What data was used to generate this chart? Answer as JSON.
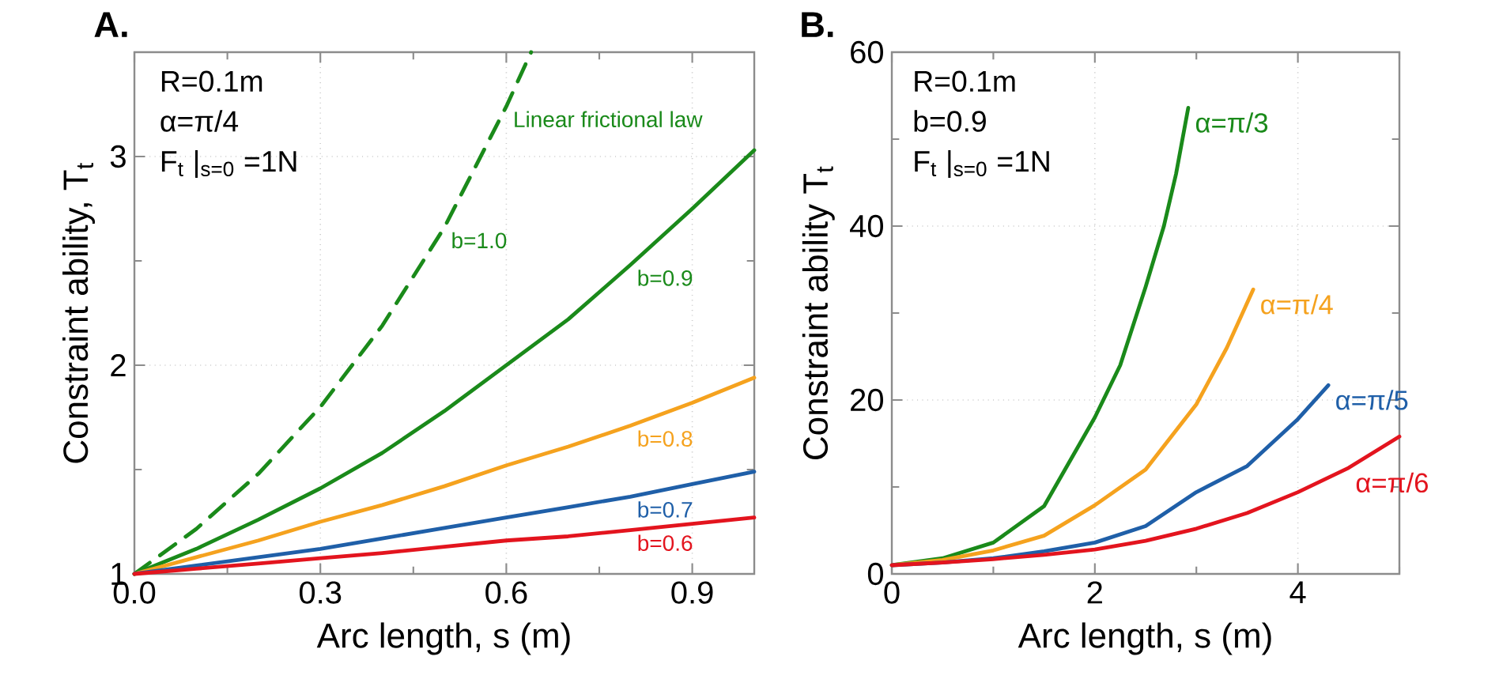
{
  "chart_data": [
    {
      "type": "line",
      "title": "A.",
      "xlabel": "Arc length, s (m)",
      "ylabel": "Constraint ability, T$_{t}$",
      "xlim": [
        0,
        1.0
      ],
      "ylim": [
        1,
        3.5
      ],
      "xticks": [
        {
          "value": 0,
          "label": "0.0"
        },
        {
          "value": 0.15,
          "label": null
        },
        0.3,
        {
          "value": 0.45,
          "label": null
        },
        0.6,
        {
          "value": 0.75,
          "label": null
        },
        0.9
      ],
      "yticks": [
        1,
        {
          "value": 1.5,
          "label": null
        },
        2,
        {
          "value": 2.5,
          "label": null
        },
        3
      ],
      "grid": true,
      "marker": "none",
      "series": [
        {
          "color": "#1a8a1a",
          "line_style": "dashed",
          "x": [
            0,
            0.1,
            0.2,
            0.3,
            0.4,
            0.5,
            0.6,
            0.64
          ],
          "values": [
            1,
            1.216,
            1.48,
            1.8,
            2.19,
            2.66,
            3.24,
            3.5
          ]
        },
        {
          "color": "#1a8a1a",
          "line_style": "solid",
          "x": [
            0,
            0.1,
            0.2,
            0.3,
            0.4,
            0.5,
            0.6,
            0.7,
            0.8,
            0.9,
            1.0
          ],
          "values": [
            1,
            1.12,
            1.26,
            1.41,
            1.58,
            1.78,
            2.0,
            2.22,
            2.48,
            2.75,
            3.03
          ]
        },
        {
          "color": "#f5a21e",
          "line_style": "solid",
          "x": [
            0,
            0.1,
            0.2,
            0.3,
            0.4,
            0.5,
            0.6,
            0.7,
            0.8,
            0.9,
            1.0
          ],
          "values": [
            1,
            1.08,
            1.16,
            1.25,
            1.33,
            1.42,
            1.52,
            1.61,
            1.71,
            1.82,
            1.94
          ]
        },
        {
          "color": "#1f5fa8",
          "line_style": "solid",
          "x": [
            0,
            0.1,
            0.2,
            0.3,
            0.4,
            0.5,
            0.6,
            0.7,
            0.8,
            0.9,
            1.0
          ],
          "values": [
            1,
            1.04,
            1.08,
            1.12,
            1.17,
            1.22,
            1.27,
            1.32,
            1.37,
            1.43,
            1.49
          ]
        },
        {
          "color": "#e3141e",
          "line_style": "solid",
          "x": [
            0,
            0.1,
            0.2,
            0.3,
            0.4,
            0.5,
            0.6,
            0.7,
            0.8,
            0.9,
            1.0
          ],
          "values": [
            1,
            1.025,
            1.05,
            1.075,
            1.1,
            1.13,
            1.16,
            1.18,
            1.21,
            1.24,
            1.27
          ]
        }
      ],
      "annotations": [
        "R=0.1m",
        "α=π/4",
        "F$_{t}$ |$_{s=0}$ =1N",
        {
          "text": "Linear frictional law",
          "x": 0.6,
          "y": 3.24
        },
        {
          "text": "b=1.0",
          "x": 0.5,
          "y": 2.66
        },
        {
          "text": "b=0.9",
          "x": 0.8,
          "y": 2.48
        },
        {
          "text": "b=0.8",
          "x": 0.8,
          "y": 1.71
        },
        {
          "text": "b=0.7",
          "x": 0.8,
          "y": 1.37
        },
        {
          "text": "b=0.6",
          "x": 0.8,
          "y": 1.21
        }
      ]
    },
    {
      "type": "line",
      "title": "B.",
      "xlabel": "Arc length, s (m)",
      "ylabel": "Constraint ability T$_{t}$",
      "xlim": [
        0,
        5
      ],
      "ylim": [
        0,
        60
      ],
      "xticks": [
        0,
        {
          "value": 1,
          "label": null
        },
        2,
        {
          "value": 3,
          "label": null
        },
        4,
        {
          "value": 5,
          "label": null
        }
      ],
      "yticks": [
        0,
        {
          "value": 10,
          "label": null
        },
        20,
        {
          "value": 30,
          "label": null
        },
        40,
        {
          "value": 50,
          "label": null
        },
        60
      ],
      "grid": true,
      "marker": "none",
      "line_style": "solid",
      "series": [
        {
          "color": "#1a8a1a",
          "x": [
            0,
            0.5,
            1,
            1.5,
            2,
            2.25,
            2.5,
            2.68,
            2.8,
            2.92
          ],
          "values": [
            1,
            1.8,
            3.6,
            7.8,
            18,
            24,
            33,
            40,
            46,
            53.6
          ]
        },
        {
          "color": "#f5a21e",
          "x": [
            0,
            0.5,
            1,
            1.5,
            2,
            2.5,
            3,
            3.3,
            3.56
          ],
          "values": [
            1,
            1.6,
            2.7,
            4.4,
            7.9,
            12,
            19.5,
            26,
            32.7
          ]
        },
        {
          "color": "#1f5fa8",
          "x": [
            0,
            0.5,
            1,
            1.5,
            2,
            2.5,
            3,
            3.5,
            4,
            4.3
          ],
          "values": [
            1,
            1.3,
            1.8,
            2.6,
            3.6,
            5.5,
            9.4,
            12.4,
            17.8,
            21.7
          ]
        },
        {
          "color": "#e3141e",
          "x": [
            0,
            0.5,
            1,
            1.5,
            2,
            2.5,
            3,
            3.5,
            4,
            4.5,
            5
          ],
          "values": [
            1,
            1.3,
            1.7,
            2.2,
            2.8,
            3.8,
            5.2,
            7,
            9.4,
            12.2,
            15.8
          ]
        }
      ],
      "annotations": [
        "R=0.1m",
        "b=0.9",
        "F$_{t}$ |$_{s=0}$ =1N",
        {
          "text": "α=π/3",
          "x": 2.92,
          "y": 53.6
        },
        {
          "text": "α=π/4",
          "x": 3.56,
          "y": 32.7
        },
        {
          "text": "α=π/5",
          "x": 4.3,
          "y": 21.7
        },
        {
          "text": "α=π/6",
          "x": 4.5,
          "y": 12.2
        }
      ]
    }
  ]
}
